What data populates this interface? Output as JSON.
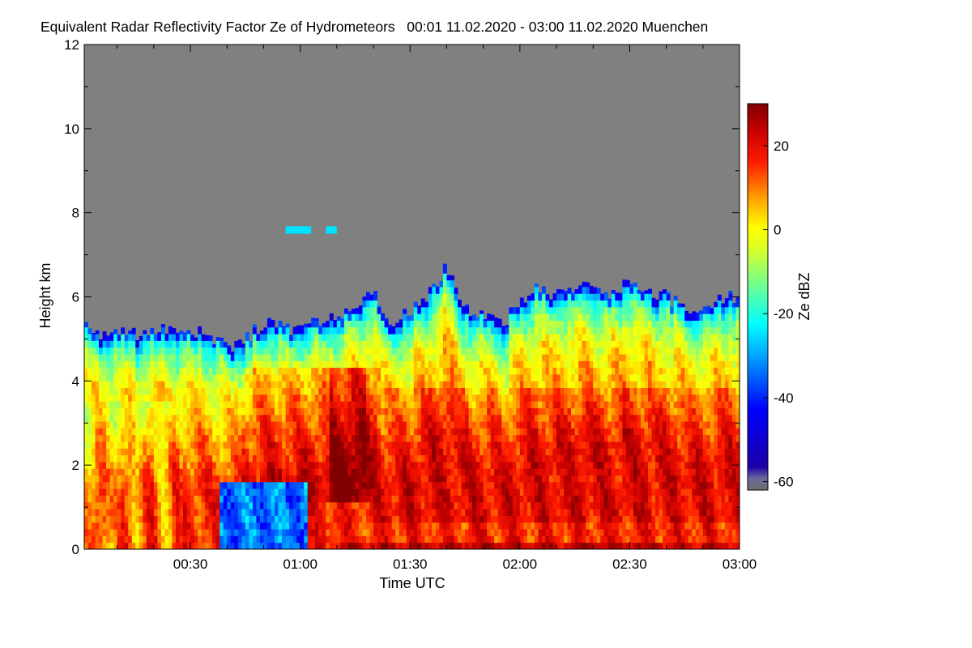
{
  "chart_data": {
    "type": "heatmap",
    "title": "Equivalent Radar Reflectivity Factor Ze of Hydrometeors   00:01 11.02.2020 - 03:00 11.02.2020 Muenchen",
    "xlabel": "Time UTC",
    "ylabel": "Height km",
    "xlim_minutes": [
      1,
      180
    ],
    "ylim": [
      0,
      12
    ],
    "x_ticks": [
      {
        "minute": 30,
        "label": "00:30"
      },
      {
        "minute": 60,
        "label": "01:00"
      },
      {
        "minute": 90,
        "label": "01:30"
      },
      {
        "minute": 120,
        "label": "02:00"
      },
      {
        "minute": 150,
        "label": "02:30"
      },
      {
        "minute": 180,
        "label": "03:00"
      }
    ],
    "y_ticks": [
      0,
      2,
      4,
      6,
      8,
      10,
      12
    ],
    "colorbar": {
      "label": "Ze dBZ",
      "range": [
        -62,
        30
      ],
      "ticks": [
        -60,
        -40,
        -20,
        0,
        20
      ],
      "colormap": "jet",
      "low_color": "#6e6e6e",
      "high_color": "#800000"
    },
    "background_color": "#808080",
    "echo_top_km": [
      {
        "minute": 1,
        "top": 5.4
      },
      {
        "minute": 5,
        "top": 5.0
      },
      {
        "minute": 10,
        "top": 5.1
      },
      {
        "minute": 15,
        "top": 5.1
      },
      {
        "minute": 20,
        "top": 5.2
      },
      {
        "minute": 25,
        "top": 5.3
      },
      {
        "minute": 30,
        "top": 5.2
      },
      {
        "minute": 35,
        "top": 5.1
      },
      {
        "minute": 40,
        "top": 4.8
      },
      {
        "minute": 45,
        "top": 5.0
      },
      {
        "minute": 50,
        "top": 5.4
      },
      {
        "minute": 55,
        "top": 5.3
      },
      {
        "minute": 60,
        "top": 5.2
      },
      {
        "minute": 65,
        "top": 5.4
      },
      {
        "minute": 70,
        "top": 5.5
      },
      {
        "minute": 75,
        "top": 5.6
      },
      {
        "minute": 80,
        "top": 6.1
      },
      {
        "minute": 85,
        "top": 5.4
      },
      {
        "minute": 90,
        "top": 5.6
      },
      {
        "minute": 95,
        "top": 6.0
      },
      {
        "minute": 100,
        "top": 6.7
      },
      {
        "minute": 105,
        "top": 5.8
      },
      {
        "minute": 110,
        "top": 5.5
      },
      {
        "minute": 115,
        "top": 5.3
      },
      {
        "minute": 120,
        "top": 5.9
      },
      {
        "minute": 125,
        "top": 6.3
      },
      {
        "minute": 130,
        "top": 6.0
      },
      {
        "minute": 135,
        "top": 6.3
      },
      {
        "minute": 140,
        "top": 6.2
      },
      {
        "minute": 145,
        "top": 6.1
      },
      {
        "minute": 150,
        "top": 6.4
      },
      {
        "minute": 155,
        "top": 6.2
      },
      {
        "minute": 160,
        "top": 6.0
      },
      {
        "minute": 165,
        "top": 5.8
      },
      {
        "minute": 170,
        "top": 5.7
      },
      {
        "minute": 175,
        "top": 6.0
      },
      {
        "minute": 180,
        "top": 6.0
      }
    ],
    "cloud_patches": [
      {
        "minute_start": 56,
        "minute_end": 63,
        "height_km": 7.6,
        "ze_dbz": -25
      },
      {
        "minute_start": 67,
        "minute_end": 70,
        "height_km": 7.6,
        "ze_dbz": -25
      }
    ]
  }
}
